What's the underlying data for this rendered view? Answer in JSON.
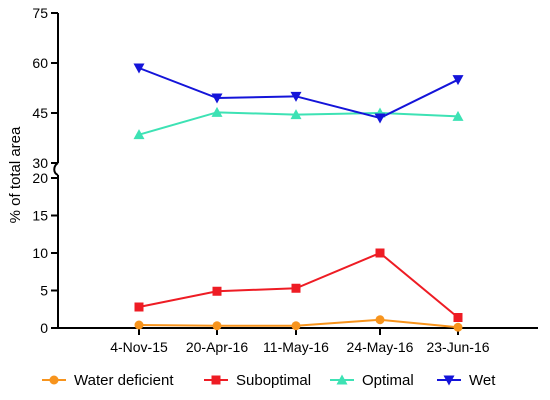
{
  "chart_data": {
    "type": "line",
    "title": "",
    "xlabel": "",
    "ylabel": "% of total area",
    "categories": [
      "4-Nov-15",
      "20-Apr-16",
      "11-May-16",
      "24-May-16",
      "23-Jun-16"
    ],
    "y_axis_break": true,
    "lower_panel": {
      "ylim": [
        0,
        20
      ],
      "ticks": [
        "0",
        "5",
        "10",
        "15",
        "20"
      ]
    },
    "upper_panel": {
      "ylim": [
        30,
        75
      ],
      "ticks": [
        "30",
        "45",
        "60",
        "75"
      ]
    },
    "legend_position": "bottom",
    "series": [
      {
        "name": "Water deficient",
        "color": "#f7941d",
        "marker": "circle",
        "values": [
          0.4,
          0.3,
          0.3,
          1.1,
          0.1
        ]
      },
      {
        "name": "Suboptimal",
        "color": "#ee1c24",
        "marker": "square",
        "values": [
          2.8,
          4.9,
          5.3,
          10.0,
          1.4
        ]
      },
      {
        "name": "Optimal",
        "color": "#3de2b4",
        "marker": "triangle-up",
        "values": [
          38.5,
          45.2,
          44.5,
          45.0,
          44.0
        ]
      },
      {
        "name": "Wet",
        "color": "#1414d9",
        "marker": "triangle-down",
        "values": [
          58.5,
          49.5,
          50.0,
          43.5,
          55.0
        ]
      }
    ]
  }
}
